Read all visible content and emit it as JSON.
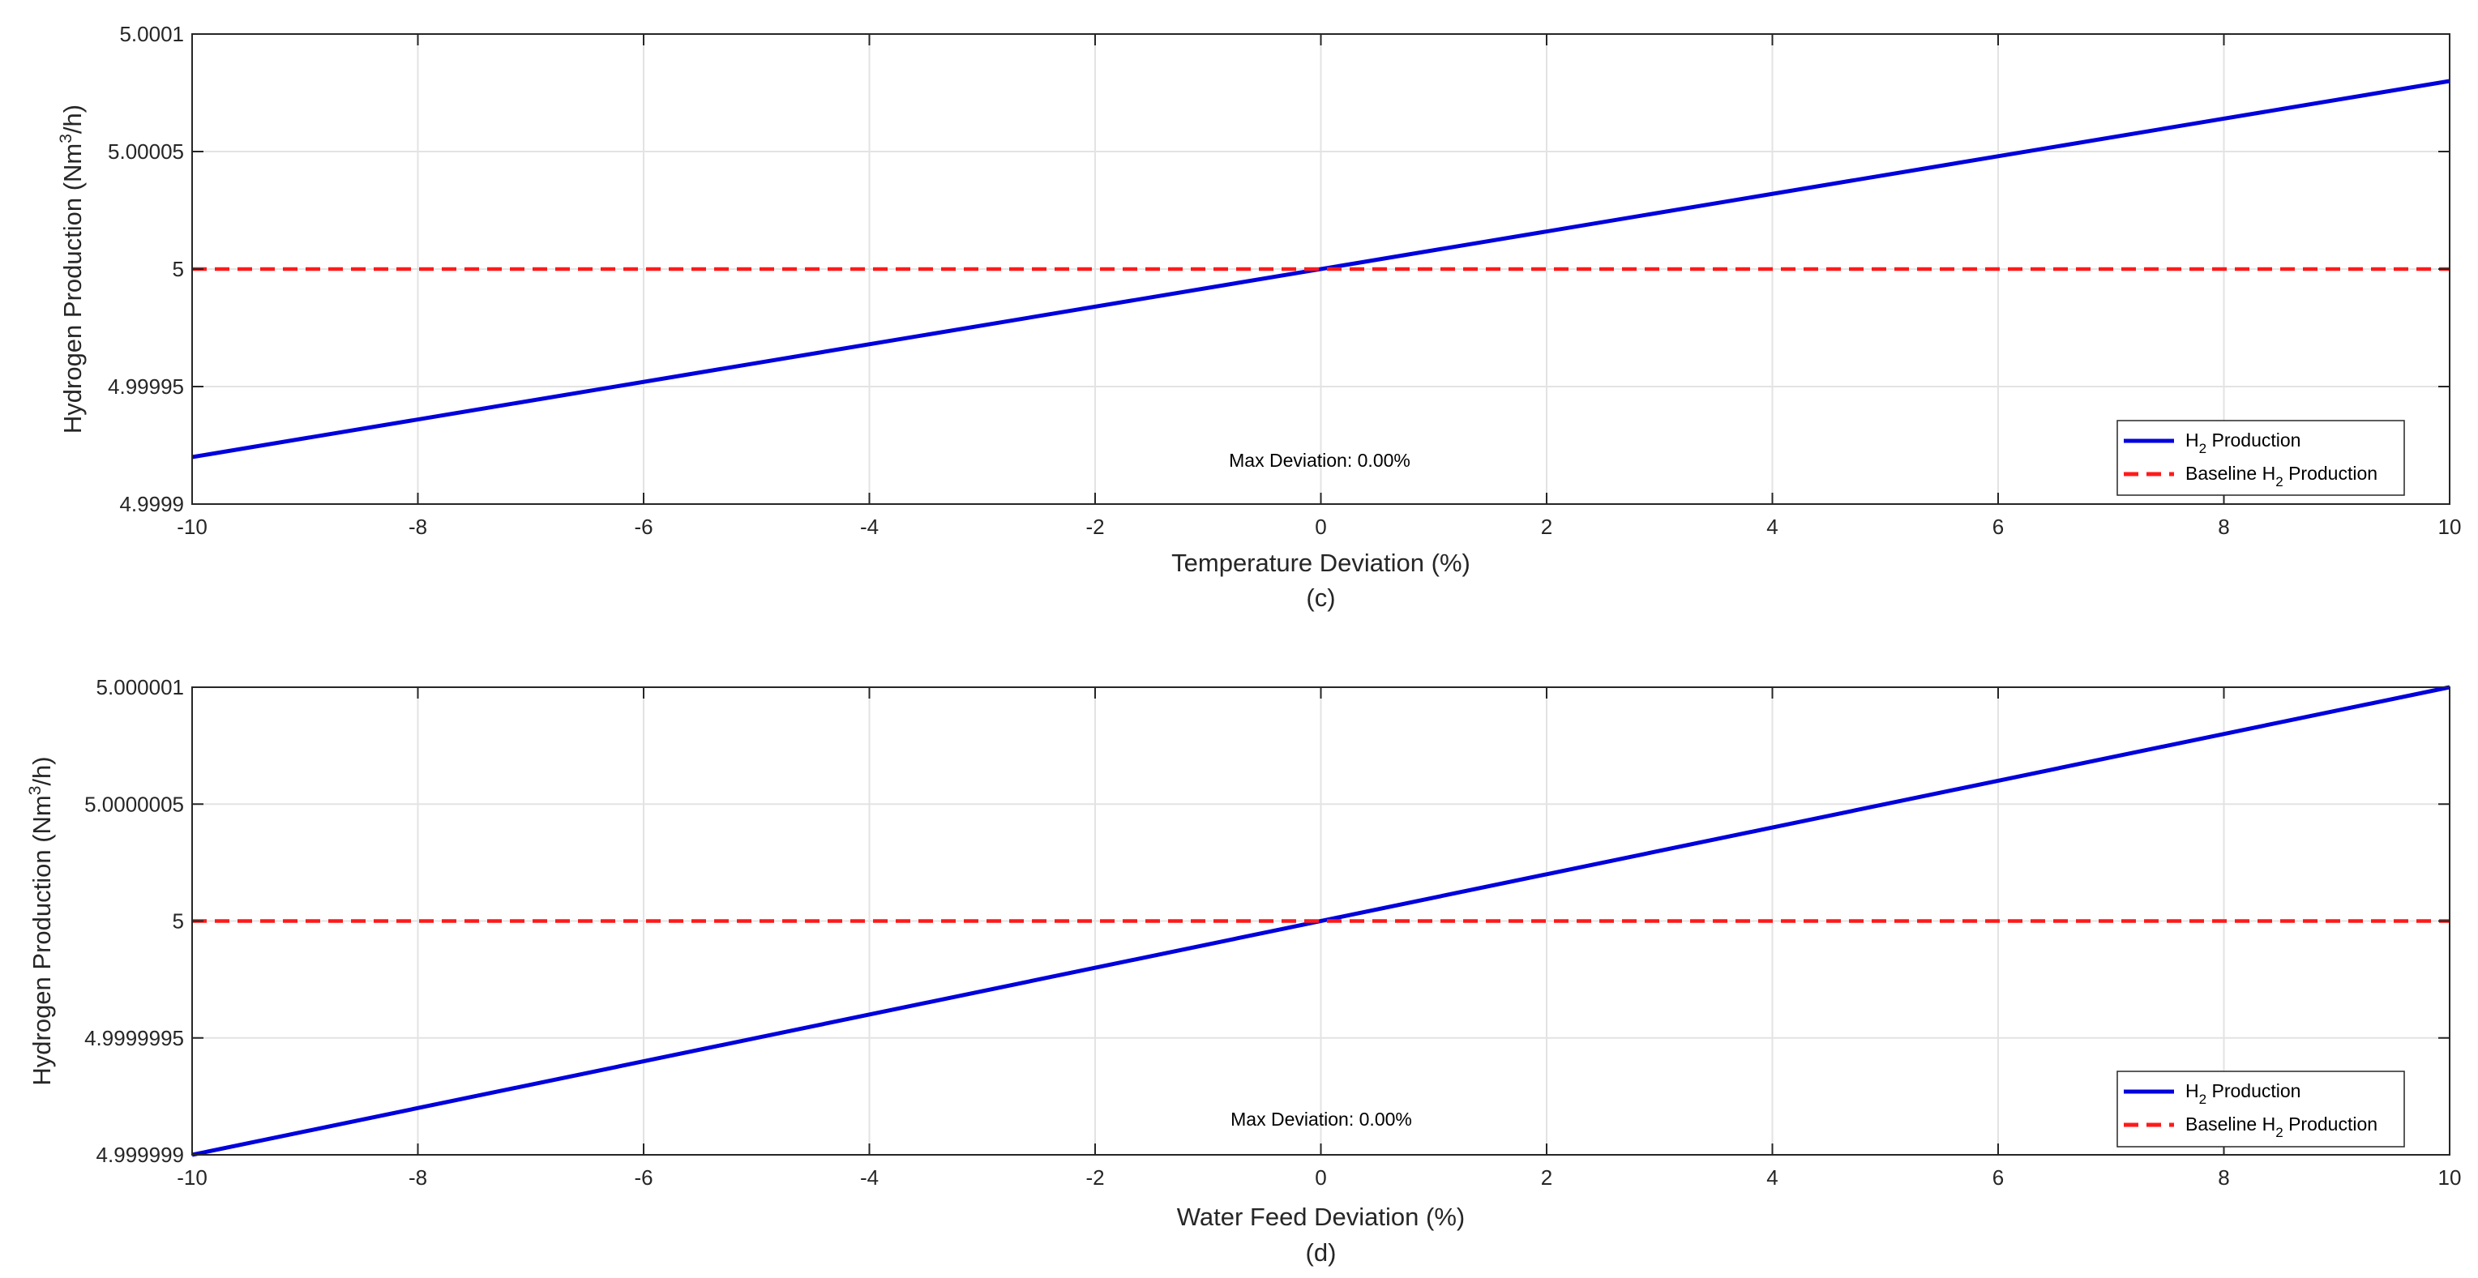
{
  "chart_data": [
    {
      "type": "line",
      "caption": "(c)",
      "xlabel": "Temperature Deviation (%)",
      "ylabel": {
        "prefix": "Hydrogen Production (Nm",
        "sup": "3",
        "suffix": "/h)"
      },
      "xlim": [
        -10,
        10
      ],
      "ylim": [
        4.9999,
        5.0001
      ],
      "x_ticks": [
        "-10",
        "-8",
        "-6",
        "-4",
        "-2",
        "0",
        "2",
        "4",
        "6",
        "8",
        "10"
      ],
      "y_ticks": [
        "4.9999",
        "4.99995",
        "5",
        "5.00005",
        "5.0001"
      ],
      "grid": true,
      "series": [
        {
          "name": "H2 Production",
          "style": "solid",
          "color": "#0000dd",
          "x": [
            -10,
            10
          ],
          "y": [
            4.99992,
            5.00008
          ]
        },
        {
          "name": "Baseline H2 Production",
          "style": "dashed",
          "color": "#ff1a1a",
          "x": [
            -10,
            10
          ],
          "y": [
            5,
            5
          ]
        }
      ],
      "legend_position": "bottom-right",
      "legend": [
        {
          "pre": "H",
          "sub": "2",
          "post": " Production"
        },
        {
          "pre": "Baseline H",
          "sub": "2",
          "post": " Production"
        }
      ],
      "annotation": "Max Deviation: 0.00%"
    },
    {
      "type": "line",
      "caption": "(d)",
      "xlabel": "Water Feed Deviation (%)",
      "ylabel": {
        "prefix": "Hydrogen Production (Nm",
        "sup": "3",
        "suffix": "/h)"
      },
      "xlim": [
        -10,
        10
      ],
      "ylim": [
        4.999999,
        5.000001
      ],
      "x_ticks": [
        "-10",
        "-8",
        "-6",
        "-4",
        "-2",
        "0",
        "2",
        "4",
        "6",
        "8",
        "10"
      ],
      "y_ticks": [
        "4.999999",
        "4.9999995",
        "5",
        "5.0000005",
        "5.000001"
      ],
      "grid": true,
      "series": [
        {
          "name": "H2 Production",
          "style": "solid",
          "color": "#0000dd",
          "x": [
            -10,
            10
          ],
          "y": [
            4.999999,
            5.000001
          ]
        },
        {
          "name": "Baseline H2 Production",
          "style": "dashed",
          "color": "#ff1a1a",
          "x": [
            -10,
            10
          ],
          "y": [
            5,
            5
          ]
        }
      ],
      "legend_position": "bottom-right",
      "legend": [
        {
          "pre": "H",
          "sub": "2",
          "post": " Production"
        },
        {
          "pre": "Baseline H",
          "sub": "2",
          "post": " Production"
        }
      ],
      "annotation": "Max Deviation: 0.00%"
    }
  ]
}
